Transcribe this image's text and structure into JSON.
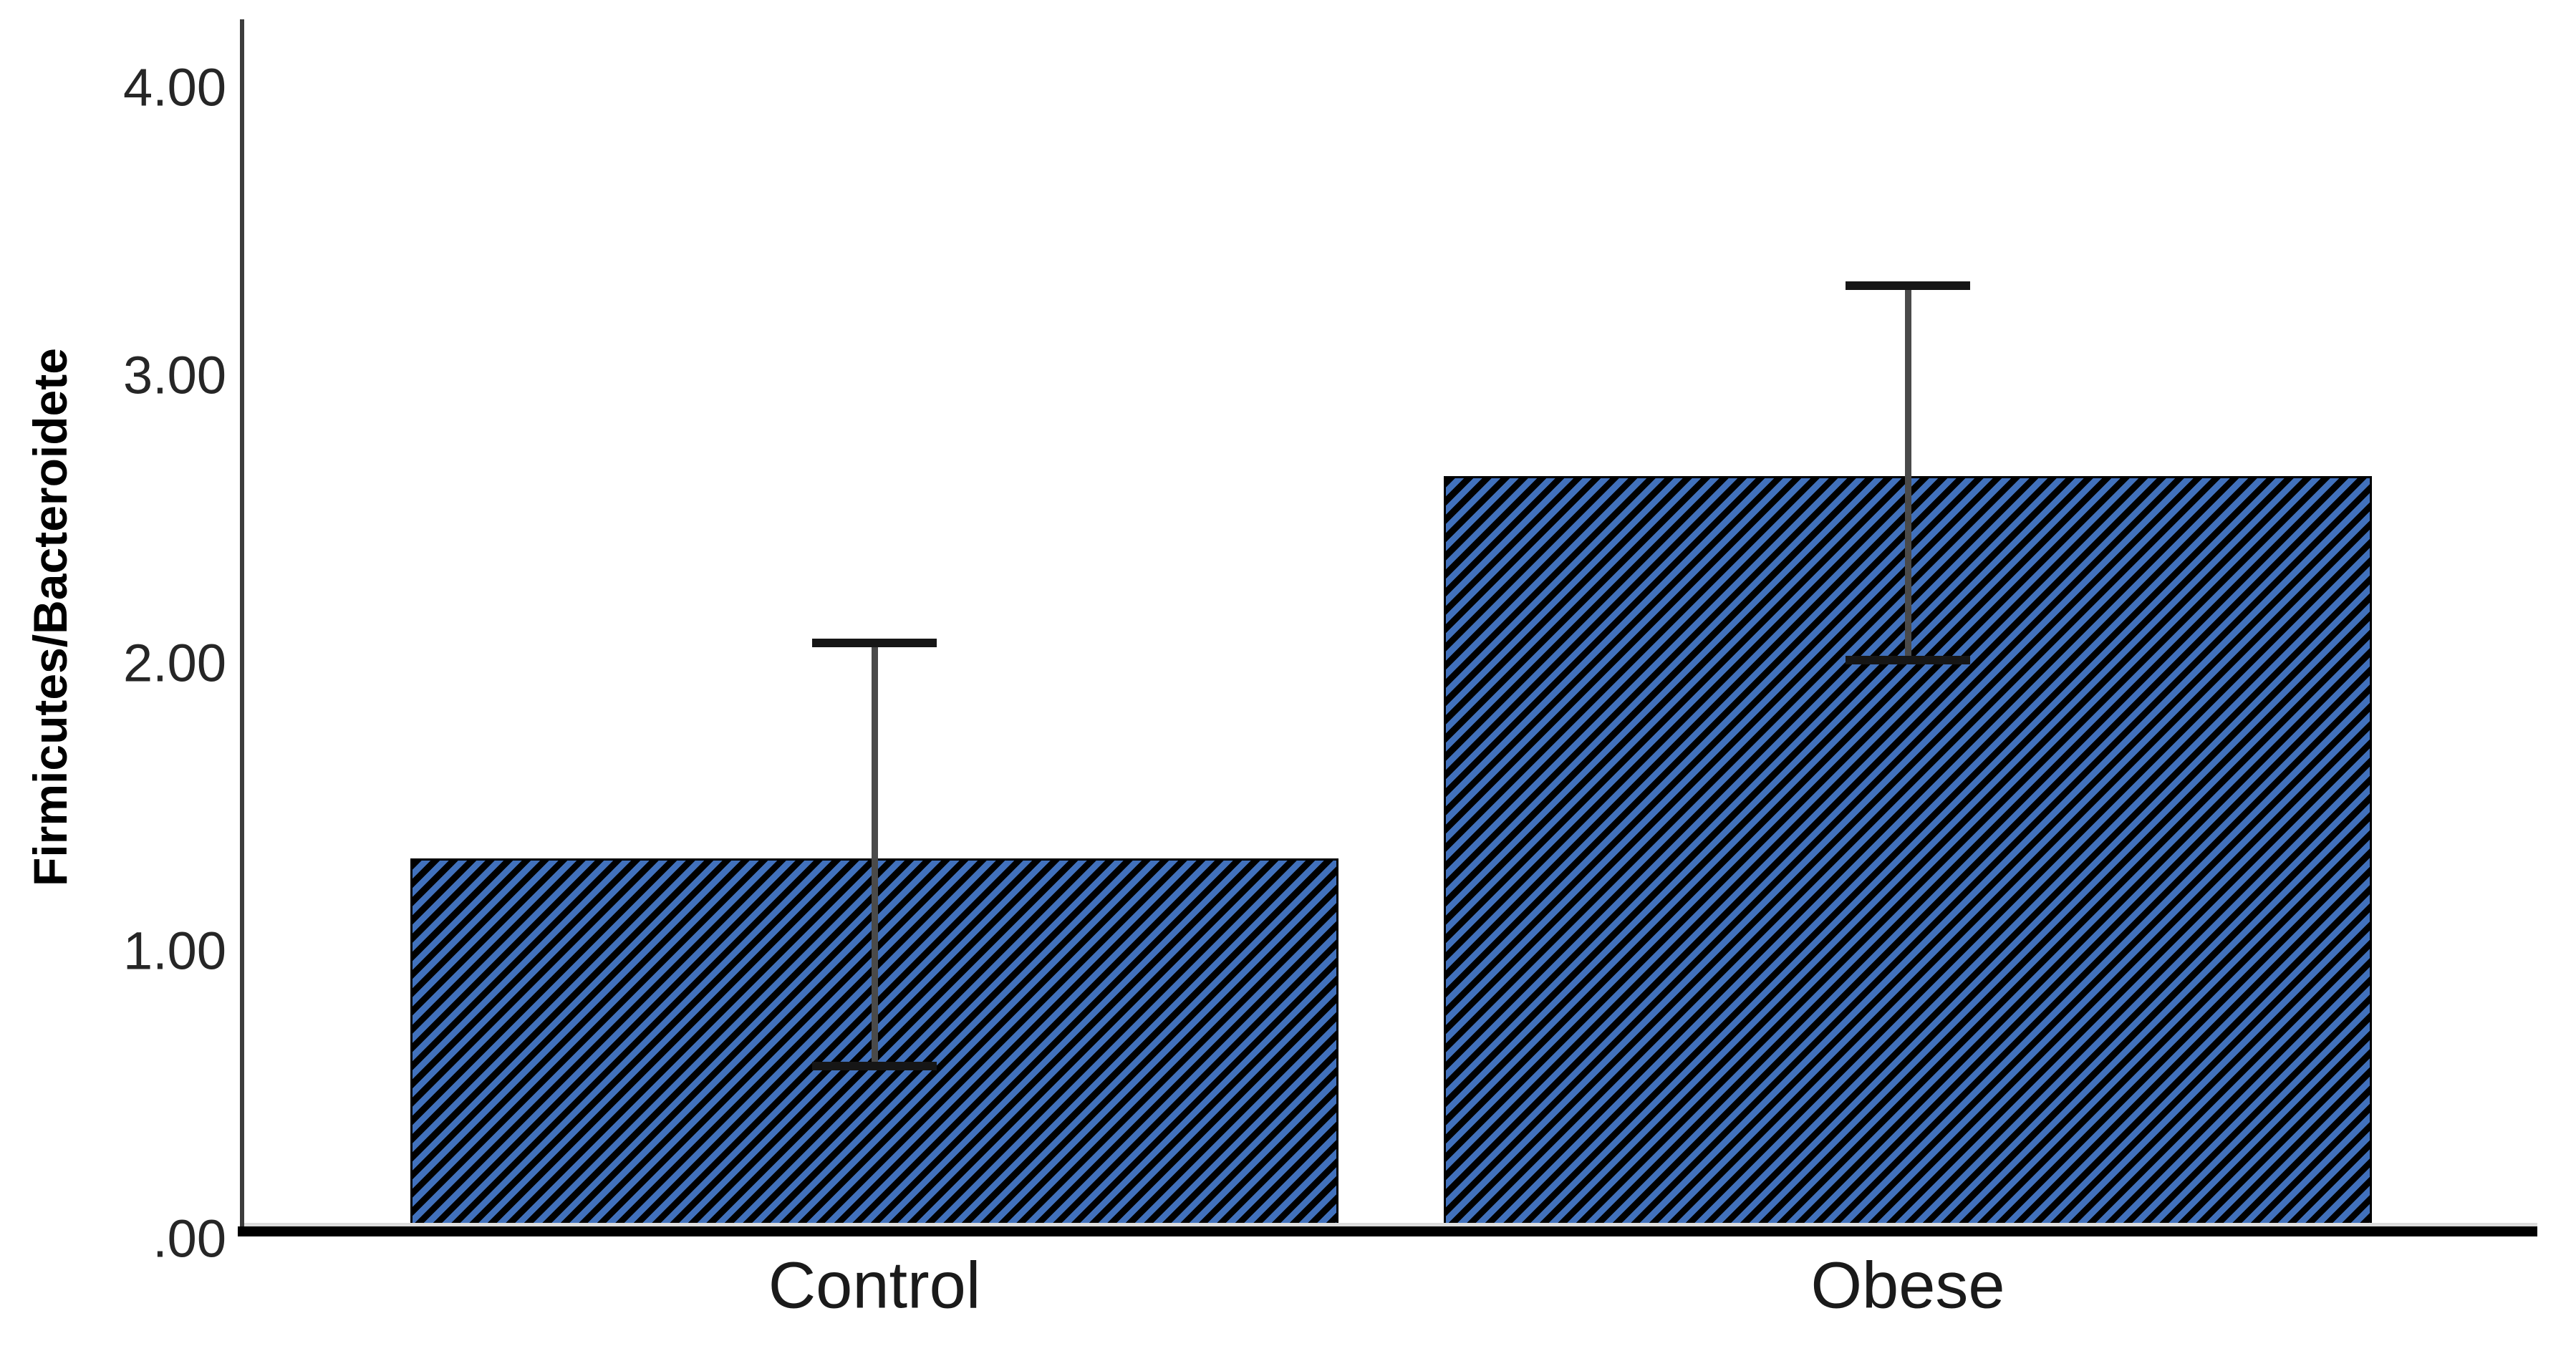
{
  "chart_data": {
    "type": "bar",
    "title": "",
    "xlabel": "",
    "ylabel": "Firmicutes/Bacteroidete",
    "categories": [
      "Control",
      "Obese"
    ],
    "values": [
      1.32,
      2.65
    ],
    "error_bars": {
      "ci_lower": [
        0.6,
        2.01
      ],
      "ci_upper": [
        2.07,
        3.31
      ]
    },
    "yticks": [
      {
        "label": ".00",
        "value": 0
      },
      {
        "label": "1.00",
        "value": 1
      },
      {
        "label": "2.00",
        "value": 2
      },
      {
        "label": "3.00",
        "value": 3
      },
      {
        "label": "4.00",
        "value": 4
      }
    ],
    "ylim": [
      0,
      4.24
    ],
    "grid": false,
    "legend": "none",
    "bar_style": {
      "pattern": "diagonal-hatch",
      "hatch_direction": "forward-slash",
      "stripe_color": "#4171bc",
      "background_color": "#000000"
    }
  },
  "colors": {
    "background": "#ffffff",
    "axis_line": "#3d3d3d",
    "baseline": "#000000",
    "plot_edge_gray": "#dcdcdc",
    "error_bar_line": "#4a4a4a",
    "error_bar_cap": "#161616",
    "tick_text": "#262626",
    "category_text": "#1a1a1a",
    "ylabel_text": "#000000"
  }
}
